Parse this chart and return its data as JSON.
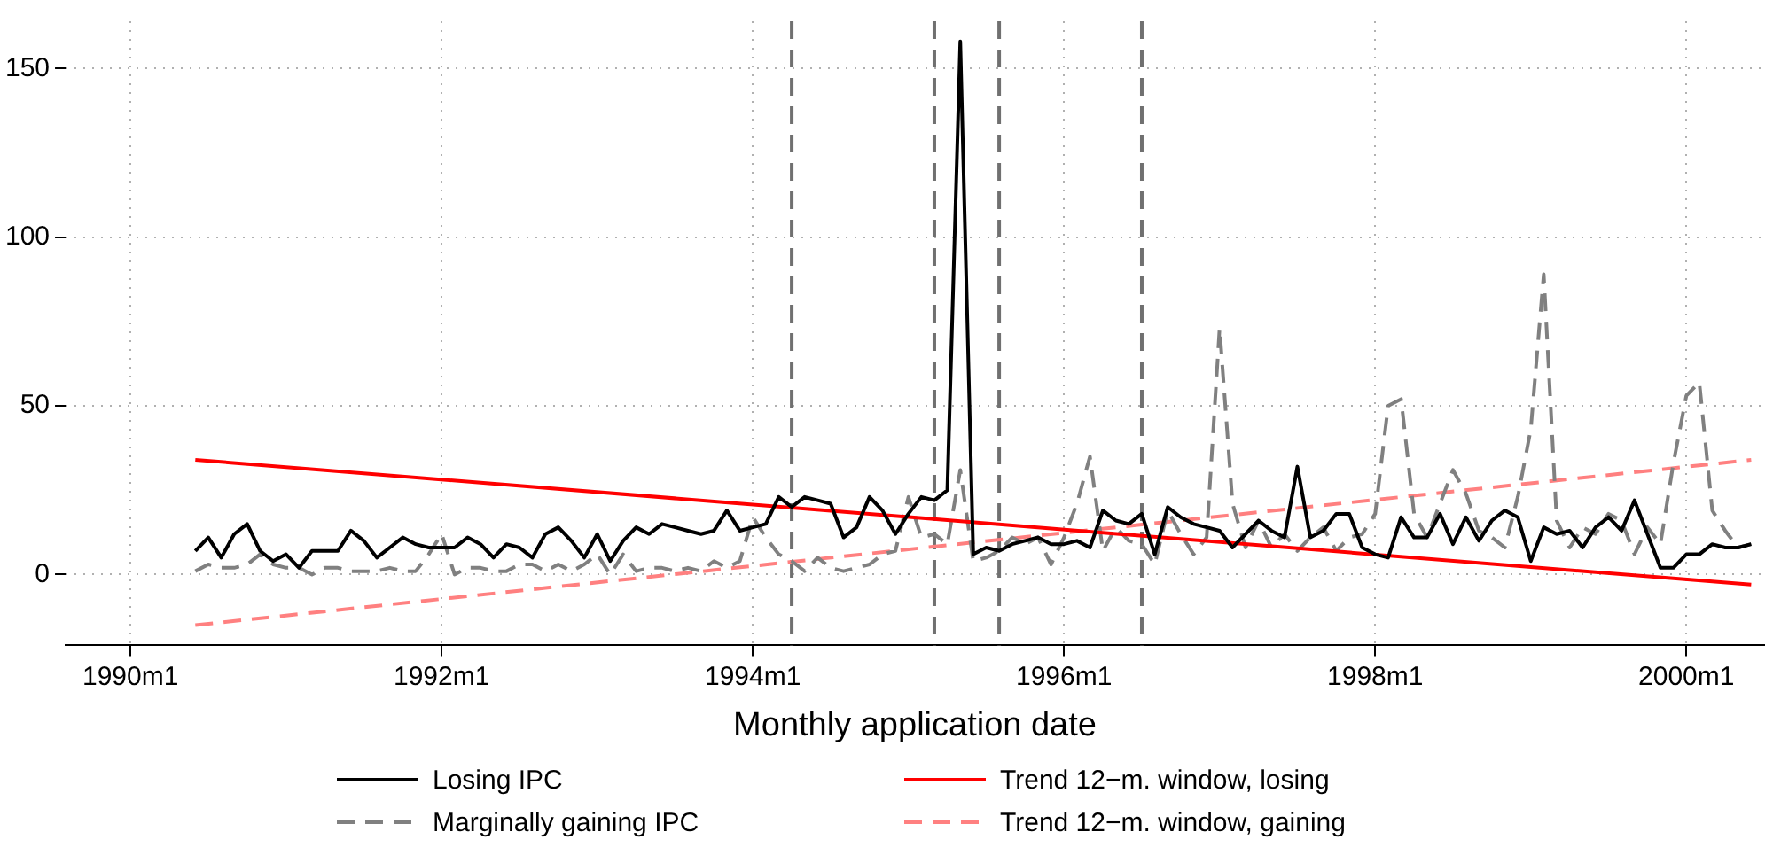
{
  "chart_data": {
    "type": "line",
    "xlabel": "Monthly application date",
    "x": [
      "1990-06",
      "1990-07",
      "1990-08",
      "1990-09",
      "1990-10",
      "1990-11",
      "1990-12",
      "1991-01",
      "1991-02",
      "1991-03",
      "1991-04",
      "1991-05",
      "1991-06",
      "1991-07",
      "1991-08",
      "1991-09",
      "1991-10",
      "1991-11",
      "1991-12",
      "1992-01",
      "1992-02",
      "1992-03",
      "1992-04",
      "1992-05",
      "1992-06",
      "1992-07",
      "1992-08",
      "1992-09",
      "1992-10",
      "1992-11",
      "1992-12",
      "1993-01",
      "1993-02",
      "1993-03",
      "1993-04",
      "1993-05",
      "1993-06",
      "1993-07",
      "1993-08",
      "1993-09",
      "1993-10",
      "1993-11",
      "1993-12",
      "1994-01",
      "1994-02",
      "1994-03",
      "1994-04",
      "1994-05",
      "1994-06",
      "1994-07",
      "1994-08",
      "1994-09",
      "1994-10",
      "1994-11",
      "1994-12",
      "1995-01",
      "1995-02",
      "1995-03",
      "1995-04",
      "1995-05",
      "1995-06",
      "1995-07",
      "1995-08",
      "1995-09",
      "1995-10",
      "1995-11",
      "1995-12",
      "1996-01",
      "1996-02",
      "1996-03",
      "1996-04",
      "1996-05",
      "1996-06",
      "1996-07",
      "1996-08",
      "1996-09",
      "1996-10",
      "1996-11",
      "1996-12",
      "1997-01",
      "1997-02",
      "1997-03",
      "1997-04",
      "1997-05",
      "1997-06",
      "1997-07",
      "1997-08",
      "1997-09",
      "1997-10",
      "1997-11",
      "1997-12",
      "1998-01",
      "1998-02",
      "1998-03",
      "1998-04",
      "1998-05",
      "1998-06",
      "1998-07",
      "1998-08",
      "1998-09",
      "1998-10",
      "1998-11",
      "1998-12",
      "1999-01",
      "1999-02",
      "1999-03",
      "1999-04",
      "1999-05",
      "1999-06",
      "1999-07",
      "1999-08",
      "1999-09",
      "1999-10",
      "1999-11",
      "1999-12",
      "2000-01",
      "2000-02",
      "2000-03",
      "2000-04",
      "2000-05",
      "2000-06"
    ],
    "series": [
      {
        "name": "Losing IPC",
        "color": "#000000",
        "line_style": "solid",
        "values": [
          7,
          11,
          5,
          12,
          15,
          7,
          4,
          6,
          2,
          7,
          7,
          7,
          13,
          10,
          5,
          8,
          11,
          9,
          8,
          8,
          8,
          11,
          9,
          5,
          9,
          8,
          5,
          12,
          14,
          10,
          5,
          12,
          4,
          10,
          14,
          12,
          15,
          14,
          13,
          12,
          13,
          19,
          13,
          14,
          15,
          23,
          20,
          23,
          22,
          21,
          11,
          14,
          23,
          19,
          12,
          18,
          23,
          22,
          25,
          158,
          6,
          8,
          7,
          9,
          10,
          11,
          9,
          9,
          10,
          8,
          19,
          16,
          15,
          18,
          6,
          20,
          17,
          15,
          14,
          13,
          8,
          12,
          16,
          13,
          11,
          32,
          11,
          13,
          18,
          18,
          8,
          6,
          5,
          17,
          11,
          11,
          18,
          9,
          17,
          10,
          16,
          19,
          17,
          4,
          14,
          12,
          13,
          8,
          14,
          17,
          13,
          22,
          12,
          2,
          2,
          6,
          6,
          9,
          8,
          8,
          9
        ]
      },
      {
        "name": "Trend 12−m. window, losing",
        "color": "#ff0000",
        "line_style": "solid",
        "x": [
          "1990-06",
          "2000-06"
        ],
        "values": [
          34,
          -3
        ]
      },
      {
        "name": "Marginally gaining IPC",
        "color": "#808080",
        "line_style": "dashed",
        "values": [
          1,
          3,
          2,
          2,
          3,
          6,
          3,
          2,
          2,
          0,
          2,
          2,
          1,
          1,
          1,
          2,
          1,
          1,
          6,
          12,
          0,
          2,
          2,
          1,
          1,
          3,
          3,
          1,
          3,
          1,
          3,
          6,
          0,
          6,
          1,
          2,
          2,
          1,
          2,
          1,
          4,
          2,
          4,
          17,
          11,
          6,
          4,
          1,
          5,
          2,
          1,
          2,
          3,
          6,
          7,
          23,
          11,
          12,
          9,
          31,
          4,
          5,
          7,
          11,
          9,
          11,
          3,
          11,
          21,
          35,
          7,
          14,
          10,
          9,
          3,
          19,
          12,
          6,
          11,
          73,
          21,
          8,
          16,
          8,
          12,
          7,
          11,
          14,
          7,
          11,
          12,
          18,
          50,
          52,
          18,
          11,
          21,
          31,
          24,
          13,
          11,
          8,
          23,
          43,
          89,
          16,
          8,
          14,
          12,
          18,
          16,
          6,
          14,
          9,
          33,
          53,
          57,
          19,
          13,
          8,
          9
        ]
      },
      {
        "name": "Trend 12−m. window, gaining",
        "color": "#ff8080",
        "line_style": "dashed",
        "x": [
          "1990-06",
          "2000-06"
        ],
        "values": [
          -15,
          34
        ]
      }
    ],
    "xlim": [
      "1989-08",
      "2000-07"
    ],
    "xticks": [
      {
        "value": "1990-01",
        "label": "1990m1"
      },
      {
        "value": "1992-01",
        "label": "1992m1"
      },
      {
        "value": "1994-01",
        "label": "1994m1"
      },
      {
        "value": "1996-01",
        "label": "1996m1"
      },
      {
        "value": "1998-01",
        "label": "1998m1"
      },
      {
        "value": "2000-01",
        "label": "2000m1"
      }
    ],
    "ylim": [
      -21,
      164
    ],
    "yticks": [
      0,
      50,
      100,
      150
    ],
    "ref_lines": [
      {
        "axis": "x",
        "value": "1994-04",
        "color": "#707070",
        "line_style": "dashed"
      },
      {
        "axis": "x",
        "value": "1995-03",
        "color": "#707070",
        "line_style": "dashed"
      },
      {
        "axis": "x",
        "value": "1995-08",
        "color": "#707070",
        "line_style": "dashed"
      },
      {
        "axis": "x",
        "value": "1996-07",
        "color": "#707070",
        "line_style": "dashed"
      }
    ],
    "grid": true,
    "legend": "bottom",
    "marker": "none"
  }
}
